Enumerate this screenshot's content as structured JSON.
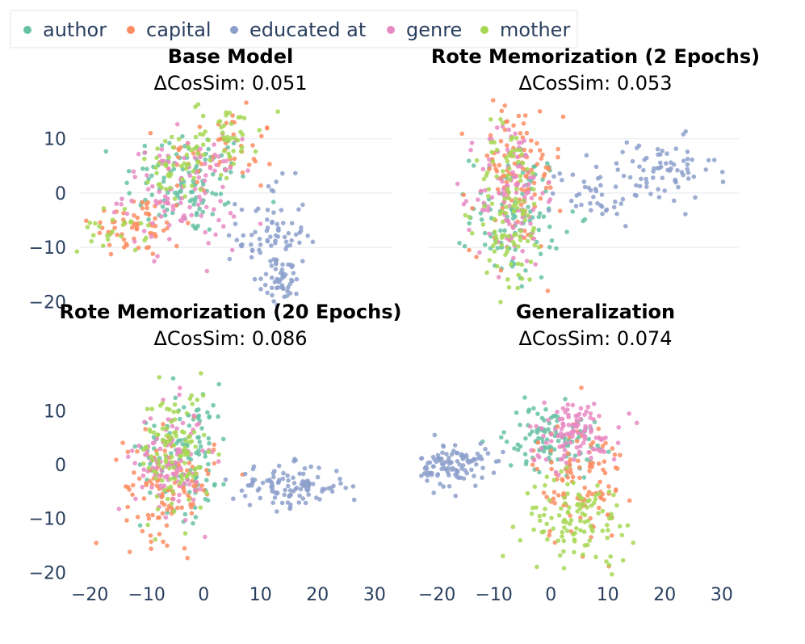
{
  "chart_data": {
    "type": "scatter",
    "legend": {
      "placement": "top-left",
      "entries": [
        {
          "name": "author",
          "color": "#66c2a5"
        },
        {
          "name": "capital",
          "color": "#fc8d62"
        },
        {
          "name": "educated at",
          "color": "#8da0cb"
        },
        {
          "name": "genre",
          "color": "#e78ac3"
        },
        {
          "name": "mother",
          "color": "#a6d854"
        }
      ]
    },
    "x_ticks": [
      -20,
      -10,
      0,
      10,
      20,
      30
    ],
    "y_ticks": [
      -20,
      -10,
      0,
      10
    ],
    "x_range": [
      -20,
      30
    ],
    "y_range": [
      -20,
      18
    ],
    "grid": true,
    "panels": [
      {
        "title": "Base Model",
        "subtitle": "ΔCosSim: 0.051",
        "clusters": [
          {
            "series": "author",
            "n": 110,
            "cx": -3,
            "cy": 2,
            "sx": 5.5,
            "sy": 5
          },
          {
            "series": "capital",
            "n": 60,
            "cx": -12,
            "cy": -6,
            "sx": 4,
            "sy": 3
          },
          {
            "series": "capital",
            "n": 55,
            "cx": 3,
            "cy": 7,
            "sx": 5,
            "sy": 4
          },
          {
            "series": "educated at",
            "n": 80,
            "cx": 12,
            "cy": -8,
            "sx": 3,
            "sy": 5
          },
          {
            "series": "educated at",
            "n": 40,
            "cx": 14,
            "cy": -16,
            "sx": 1.5,
            "sy": 2
          },
          {
            "series": "genre",
            "n": 110,
            "cx": -4,
            "cy": 0,
            "sx": 5,
            "sy": 5
          },
          {
            "series": "mother",
            "n": 45,
            "cx": -4,
            "cy": 4,
            "sx": 4,
            "sy": 3
          },
          {
            "series": "mother",
            "n": 45,
            "cx": 4,
            "cy": 11,
            "sx": 3,
            "sy": 3
          },
          {
            "series": "mother",
            "n": 25,
            "cx": -16,
            "cy": -7,
            "sx": 3,
            "sy": 2
          }
        ]
      },
      {
        "title": "Rote Memorization (2 Epochs)",
        "subtitle": "ΔCosSim: 0.053",
        "clusters": [
          {
            "series": "author",
            "n": 100,
            "cx": -6,
            "cy": -4,
            "sx": 4,
            "sy": 6
          },
          {
            "series": "capital",
            "n": 110,
            "cx": -6,
            "cy": 3,
            "sx": 4,
            "sy": 7
          },
          {
            "series": "educated at",
            "n": 70,
            "cx": 19,
            "cy": 4,
            "sx": 5,
            "sy": 3
          },
          {
            "series": "educated at",
            "n": 40,
            "cx": 8,
            "cy": 0,
            "sx": 4,
            "sy": 3
          },
          {
            "series": "genre",
            "n": 110,
            "cx": -7,
            "cy": 0,
            "sx": 3,
            "sy": 7
          },
          {
            "series": "mother",
            "n": 110,
            "cx": -7,
            "cy": -3,
            "sx": 3,
            "sy": 8
          }
        ]
      },
      {
        "title": "Rote Memorization (20 Epochs)",
        "subtitle": "ΔCosSim: 0.086",
        "clusters": [
          {
            "series": "author",
            "n": 110,
            "cx": -3,
            "cy": 3,
            "sx": 4,
            "sy": 6
          },
          {
            "series": "capital",
            "n": 110,
            "cx": -6,
            "cy": -4,
            "sx": 4,
            "sy": 5
          },
          {
            "series": "educated at",
            "n": 110,
            "cx": 15,
            "cy": -4,
            "sx": 5,
            "sy": 2
          },
          {
            "series": "genre",
            "n": 110,
            "cx": -6,
            "cy": 1,
            "sx": 3,
            "sy": 5
          },
          {
            "series": "mother",
            "n": 110,
            "cx": -5,
            "cy": 2,
            "sx": 3,
            "sy": 6
          }
        ]
      },
      {
        "title": "Generalization",
        "subtitle": "ΔCosSim: 0.074",
        "clusters": [
          {
            "series": "author",
            "n": 110,
            "cx": 0,
            "cy": 5,
            "sx": 4,
            "sy": 3
          },
          {
            "series": "capital",
            "n": 110,
            "cx": 5,
            "cy": -3,
            "sx": 4,
            "sy": 6
          },
          {
            "series": "educated at",
            "n": 110,
            "cx": -17,
            "cy": 0,
            "sx": 3,
            "sy": 2
          },
          {
            "series": "genre",
            "n": 110,
            "cx": 4,
            "cy": 6,
            "sx": 4,
            "sy": 3
          },
          {
            "series": "mother",
            "n": 110,
            "cx": 5,
            "cy": -10,
            "sx": 5,
            "sy": 4
          }
        ]
      }
    ]
  }
}
